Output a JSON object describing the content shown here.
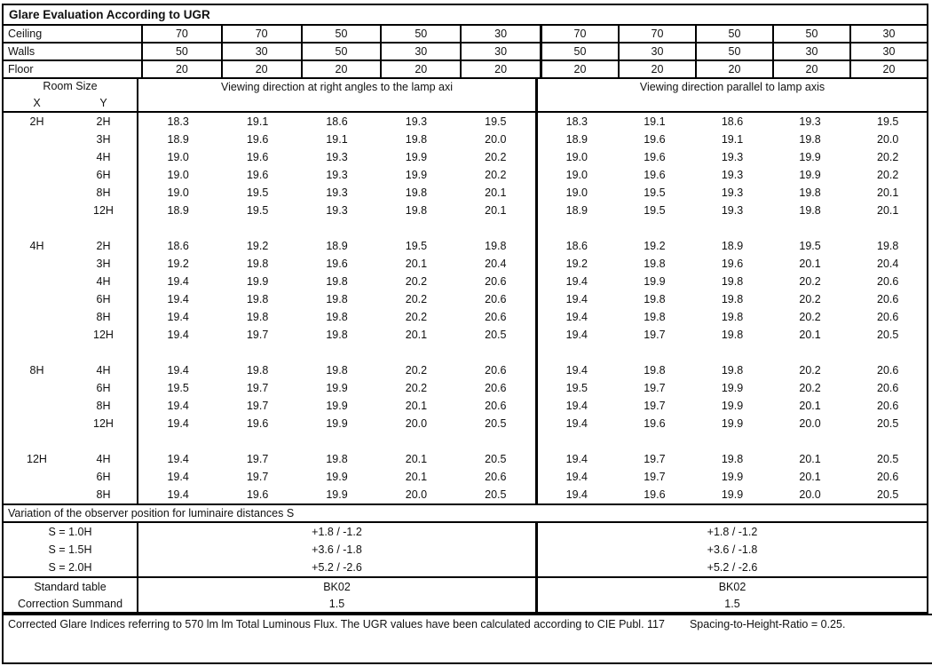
{
  "title": "Glare Evaluation According to UGR",
  "surfaces": [
    {
      "label": "Ceiling",
      "right_angles": [
        "70",
        "70",
        "50",
        "50",
        "30"
      ],
      "parallel": [
        "70",
        "70",
        "50",
        "50",
        "30"
      ]
    },
    {
      "label": "Walls",
      "right_angles": [
        "50",
        "30",
        "50",
        "30",
        "30"
      ],
      "parallel": [
        "50",
        "30",
        "50",
        "30",
        "30"
      ]
    },
    {
      "label": "Floor",
      "right_angles": [
        "20",
        "20",
        "20",
        "20",
        "20"
      ],
      "parallel": [
        "20",
        "20",
        "20",
        "20",
        "20"
      ]
    }
  ],
  "header": {
    "room_size": "Room Size",
    "x_label": "X",
    "y_label": "Y",
    "heading_right_angles": "Viewing direction at right angles to the lamp axi",
    "heading_parallel": "Viewing direction parallel to lamp axis"
  },
  "ugr_sections": [
    {
      "x": "2H",
      "rows": [
        {
          "y": "2H",
          "right_angles": [
            "18.3",
            "19.1",
            "18.6",
            "19.3",
            "19.5"
          ],
          "parallel": [
            "18.3",
            "19.1",
            "18.6",
            "19.3",
            "19.5"
          ]
        },
        {
          "y": "3H",
          "right_angles": [
            "18.9",
            "19.6",
            "19.1",
            "19.8",
            "20.0"
          ],
          "parallel": [
            "18.9",
            "19.6",
            "19.1",
            "19.8",
            "20.0"
          ]
        },
        {
          "y": "4H",
          "right_angles": [
            "19.0",
            "19.6",
            "19.3",
            "19.9",
            "20.2"
          ],
          "parallel": [
            "19.0",
            "19.6",
            "19.3",
            "19.9",
            "20.2"
          ]
        },
        {
          "y": "6H",
          "right_angles": [
            "19.0",
            "19.6",
            "19.3",
            "19.9",
            "20.2"
          ],
          "parallel": [
            "19.0",
            "19.6",
            "19.3",
            "19.9",
            "20.2"
          ]
        },
        {
          "y": "8H",
          "right_angles": [
            "19.0",
            "19.5",
            "19.3",
            "19.8",
            "20.1"
          ],
          "parallel": [
            "19.0",
            "19.5",
            "19.3",
            "19.8",
            "20.1"
          ]
        },
        {
          "y": "12H",
          "right_angles": [
            "18.9",
            "19.5",
            "19.3",
            "19.8",
            "20.1"
          ],
          "parallel": [
            "18.9",
            "19.5",
            "19.3",
            "19.8",
            "20.1"
          ]
        }
      ]
    },
    {
      "x": "4H",
      "rows": [
        {
          "y": "2H",
          "right_angles": [
            "18.6",
            "19.2",
            "18.9",
            "19.5",
            "19.8"
          ],
          "parallel": [
            "18.6",
            "19.2",
            "18.9",
            "19.5",
            "19.8"
          ]
        },
        {
          "y": "3H",
          "right_angles": [
            "19.2",
            "19.8",
            "19.6",
            "20.1",
            "20.4"
          ],
          "parallel": [
            "19.2",
            "19.8",
            "19.6",
            "20.1",
            "20.4"
          ]
        },
        {
          "y": "4H",
          "right_angles": [
            "19.4",
            "19.9",
            "19.8",
            "20.2",
            "20.6"
          ],
          "parallel": [
            "19.4",
            "19.9",
            "19.8",
            "20.2",
            "20.6"
          ]
        },
        {
          "y": "6H",
          "right_angles": [
            "19.4",
            "19.8",
            "19.8",
            "20.2",
            "20.6"
          ],
          "parallel": [
            "19.4",
            "19.8",
            "19.8",
            "20.2",
            "20.6"
          ]
        },
        {
          "y": "8H",
          "right_angles": [
            "19.4",
            "19.8",
            "19.8",
            "20.2",
            "20.6"
          ],
          "parallel": [
            "19.4",
            "19.8",
            "19.8",
            "20.2",
            "20.6"
          ]
        },
        {
          "y": "12H",
          "right_angles": [
            "19.4",
            "19.7",
            "19.8",
            "20.1",
            "20.5"
          ],
          "parallel": [
            "19.4",
            "19.7",
            "19.8",
            "20.1",
            "20.5"
          ]
        }
      ]
    },
    {
      "x": "8H",
      "rows": [
        {
          "y": "4H",
          "right_angles": [
            "19.4",
            "19.8",
            "19.8",
            "20.2",
            "20.6"
          ],
          "parallel": [
            "19.4",
            "19.8",
            "19.8",
            "20.2",
            "20.6"
          ]
        },
        {
          "y": "6H",
          "right_angles": [
            "19.5",
            "19.7",
            "19.9",
            "20.2",
            "20.6"
          ],
          "parallel": [
            "19.5",
            "19.7",
            "19.9",
            "20.2",
            "20.6"
          ]
        },
        {
          "y": "8H",
          "right_angles": [
            "19.4",
            "19.7",
            "19.9",
            "20.1",
            "20.6"
          ],
          "parallel": [
            "19.4",
            "19.7",
            "19.9",
            "20.1",
            "20.6"
          ]
        },
        {
          "y": "12H",
          "right_angles": [
            "19.4",
            "19.6",
            "19.9",
            "20.0",
            "20.5"
          ],
          "parallel": [
            "19.4",
            "19.6",
            "19.9",
            "20.0",
            "20.5"
          ]
        }
      ]
    },
    {
      "x": "12H",
      "rows": [
        {
          "y": "4H",
          "right_angles": [
            "19.4",
            "19.7",
            "19.8",
            "20.1",
            "20.5"
          ],
          "parallel": [
            "19.4",
            "19.7",
            "19.8",
            "20.1",
            "20.5"
          ]
        },
        {
          "y": "6H",
          "right_angles": [
            "19.4",
            "19.7",
            "19.9",
            "20.1",
            "20.6"
          ],
          "parallel": [
            "19.4",
            "19.7",
            "19.9",
            "20.1",
            "20.6"
          ]
        },
        {
          "y": "8H",
          "right_angles": [
            "19.4",
            "19.6",
            "19.9",
            "20.0",
            "20.5"
          ],
          "parallel": [
            "19.4",
            "19.6",
            "19.9",
            "20.0",
            "20.5"
          ]
        }
      ]
    }
  ],
  "variation": {
    "heading": "Variation of the observer position for luminaire distances S",
    "rows": [
      {
        "label": "S = 1.0H",
        "right_angles": "+1.8 / -1.2",
        "parallel": "+1.8 / -1.2"
      },
      {
        "label": "S = 1.5H",
        "right_angles": "+3.6 / -1.8",
        "parallel": "+3.6 / -1.8"
      },
      {
        "label": "S = 2.0H",
        "right_angles": "+5.2 / -2.6",
        "parallel": "+5.2 / -2.6"
      }
    ]
  },
  "summary_rows": [
    {
      "label": "Standard table",
      "right_angles": "BK02",
      "parallel": "BK02"
    },
    {
      "label": "Correction Summand",
      "right_angles": "1.5",
      "parallel": "1.5"
    }
  ],
  "footer": {
    "text_main": "Corrected Glare Indices referring to 570 lm lm Total Luminous Flux. The UGR values have been calculated according to CIE Publ. 117",
    "text_ratio": "Spacing-to-Height-Ratio = 0.25."
  }
}
